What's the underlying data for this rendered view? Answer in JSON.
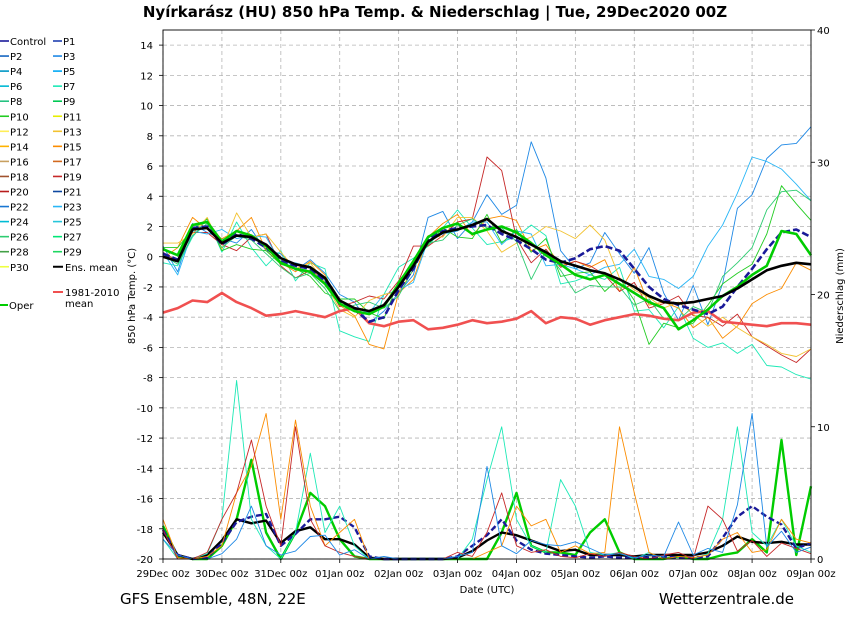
{
  "chart_data": {
    "type": "line",
    "title": "Nyírkarász  (HU)  850 hPa Temp. & Niederschlag | Tue, 29Dec2020 00Z",
    "xlabel": "Date (UTC)",
    "ylabel": "850 hPa Temp. (°C)",
    "ylabel_right": "Niederschlag (mm)",
    "ylim": [
      -20,
      15
    ],
    "ylim_right": [
      0,
      40
    ],
    "yticks": [
      "14",
      "12",
      "10",
      "8",
      "6",
      "4",
      "2",
      "0",
      "-2",
      "-4",
      "-6",
      "-8",
      "-10",
      "-12",
      "-14",
      "-16",
      "-18",
      "-20"
    ],
    "yticks_right": [
      "40",
      "30",
      "20",
      "10",
      "0"
    ],
    "xticks": [
      "29Dec 00z",
      "30Dec 00z",
      "31Dec 00z",
      "01Jan 00z",
      "02Jan 00z",
      "03Jan 00z",
      "04Jan 00z",
      "05Jan 00z",
      "06Jan 00z",
      "07Jan 00z",
      "08Jan 00z",
      "09Jan 00z"
    ],
    "footer_left": "GFS Ensemble, 48N, 22E",
    "footer_right": "Wetterzentrale.de",
    "legend_placement": "left",
    "legend": [
      {
        "label": "Control",
        "color": "#1a1a99"
      },
      {
        "label": "P1",
        "color": "#1f3fb0"
      },
      {
        "label": "P2",
        "color": "#1565c0"
      },
      {
        "label": "P3",
        "color": "#1e88e5"
      },
      {
        "label": "P4",
        "color": "#0097c4"
      },
      {
        "label": "P5",
        "color": "#03a9f4"
      },
      {
        "label": "P6",
        "color": "#00b8d4"
      },
      {
        "label": "P7",
        "color": "#1de9b6"
      },
      {
        "label": "P8",
        "color": "#26c281"
      },
      {
        "label": "P9",
        "color": "#00c853"
      },
      {
        "label": "P10",
        "color": "#22cc22"
      },
      {
        "label": "P11",
        "color": "#e6ee00"
      },
      {
        "label": "P12",
        "color": "#ffee58"
      },
      {
        "label": "P13",
        "color": "#f2c230"
      },
      {
        "label": "P14",
        "color": "#ffb300"
      },
      {
        "label": "P15",
        "color": "#fb8c00"
      },
      {
        "label": "P16",
        "color": "#c8a060"
      },
      {
        "label": "P17",
        "color": "#d2691e"
      },
      {
        "label": "P18",
        "color": "#a0522d"
      },
      {
        "label": "P19",
        "color": "#c62828"
      },
      {
        "label": "P20",
        "color": "#b71c1c"
      },
      {
        "label": "P21",
        "color": "#0d47a1"
      },
      {
        "label": "P22",
        "color": "#1976d2"
      },
      {
        "label": "P23",
        "color": "#29b6f6"
      },
      {
        "label": "P24",
        "color": "#00bcd4"
      },
      {
        "label": "P25",
        "color": "#26c6da"
      },
      {
        "label": "P26",
        "color": "#2ecc71"
      },
      {
        "label": "P27",
        "color": "#00e676"
      },
      {
        "label": "P28",
        "color": "#43a047"
      },
      {
        "label": "P29",
        "color": "#1ed760"
      },
      {
        "label": "P30",
        "color": "#eeff41"
      },
      {
        "label": "Ens. mean",
        "color": "#000000"
      },
      {
        "label": "1981-2010 mean",
        "color": "#f05050"
      },
      {
        "label": "Oper",
        "color": "#00cc00"
      }
    ],
    "x": [
      0,
      6,
      12,
      18,
      24,
      30,
      36,
      42,
      48,
      54,
      60,
      66,
      72,
      78,
      84,
      90,
      96,
      102,
      108,
      114,
      120,
      126,
      132,
      138,
      144,
      150,
      156,
      162,
      168,
      174,
      180,
      186,
      192,
      198,
      204,
      210,
      216,
      222,
      228,
      234,
      240,
      246,
      252,
      258,
      264
    ],
    "series": [
      {
        "name": "Ens. mean",
        "kind": "temp",
        "values": [
          0,
          -0.3,
          1.8,
          1.9,
          0.9,
          1.4,
          1.3,
          0.8,
          -0.1,
          -0.5,
          -0.7,
          -1.4,
          -2.9,
          -3.4,
          -3.6,
          -3.2,
          -2,
          -0.6,
          1,
          1.6,
          1.8,
          2.1,
          2.5,
          1.7,
          1.3,
          0.8,
          0.3,
          -0.3,
          -0.6,
          -0.9,
          -1.1,
          -1.5,
          -2,
          -2.6,
          -3,
          -3.1,
          -3,
          -2.8,
          -2.6,
          -2.1,
          -1.5,
          -0.9,
          -0.6,
          -0.4,
          -0.5
        ]
      },
      {
        "name": "Control",
        "kind": "temp",
        "values": [
          0.2,
          -0.2,
          1.9,
          2,
          0.8,
          1.5,
          1.2,
          0.6,
          -0.3,
          -0.6,
          -0.8,
          -1.6,
          -3,
          -3.5,
          -4.3,
          -4,
          -2.2,
          -0.8,
          1.2,
          1.7,
          1.9,
          2,
          2.1,
          1.5,
          1.1,
          0.5,
          -0.2,
          -0.4,
          -0.1,
          0.5,
          0.7,
          0.4,
          -0.8,
          -2,
          -2.8,
          -3.2,
          -3.5,
          -3.8,
          -3.3,
          -2,
          -0.8,
          0.5,
          1.6,
          1.8,
          1.3
        ]
      },
      {
        "name": "Oper",
        "kind": "temp",
        "values": [
          0.5,
          0.1,
          2.1,
          2.3,
          1,
          1.7,
          1.4,
          0.7,
          -0.4,
          -0.8,
          -1,
          -1.8,
          -3.1,
          -3.6,
          -3.8,
          -3.3,
          -1.8,
          -0.3,
          1.3,
          1.9,
          2.2,
          1.5,
          1.8,
          2,
          1.6,
          0.9,
          0.1,
          -0.5,
          -1.2,
          -1.5,
          -1.2,
          -1.8,
          -2.4,
          -3,
          -3.4,
          -4.8,
          -4.2,
          -3.5,
          -2.6,
          -2,
          -1.2,
          -0.6,
          1.7,
          1.5,
          0.1
        ]
      },
      {
        "name": "1981-2010 mean",
        "kind": "temp",
        "values": [
          -3.7,
          -3.4,
          -2.9,
          -3,
          -2.4,
          -3,
          -3.4,
          -3.9,
          -3.8,
          -3.6,
          -3.8,
          -4,
          -3.6,
          -3.4,
          -4.4,
          -4.6,
          -4.3,
          -4.2,
          -4.8,
          -4.7,
          -4.5,
          -4.2,
          -4.4,
          -4.3,
          -4.1,
          -3.6,
          -4.4,
          -4,
          -4.1,
          -4.5,
          -4.2,
          -4,
          -3.8,
          -3.9,
          -4.1,
          -4.2,
          -3.7,
          -3.6,
          -4.3,
          -4.4,
          -4.5,
          -4.6,
          -4.4,
          -4.4,
          -4.5
        ]
      },
      {
        "name": "P3",
        "kind": "temp",
        "values": [
          0.7,
          -1,
          2.2,
          1.6,
          1.2,
          0.9,
          1.8,
          0.4,
          0.2,
          -0.9,
          -0.2,
          -1.1,
          -2.5,
          -3,
          -4.4,
          -3.6,
          -2.4,
          -1.2,
          2.6,
          3,
          1.2,
          2.3,
          4.1,
          2.8,
          3.4,
          7.6,
          5.2,
          0.4,
          -0.8,
          -0.4,
          1.6,
          0.2,
          -1.1,
          0.6,
          -2.4,
          -4.2,
          -1.9,
          -4.5,
          -1.8,
          3.2,
          4.1,
          6.5,
          7.4,
          7.5,
          8.6
        ]
      },
      {
        "name": "P7",
        "kind": "temp",
        "values": [
          -0.4,
          -0.6,
          1.3,
          2.5,
          0.3,
          2.3,
          0.6,
          -0.6,
          0.4,
          -1.6,
          -0.4,
          -0.8,
          -4.9,
          -5.3,
          -5.6,
          -2.5,
          -0.7,
          -0.1,
          0.7,
          1.9,
          3.1,
          1.9,
          0.8,
          1,
          1.3,
          2.1,
          1.4,
          -1.8,
          -1.6,
          -1.2,
          -1.5,
          -0.7,
          -3.6,
          -3.5,
          -4.7,
          -3.3,
          -5.4,
          -6,
          -5.7,
          -6.4,
          -5.8,
          -7.2,
          -7.3,
          -7.8,
          -8.1
        ]
      },
      {
        "name": "P15",
        "kind": "temp",
        "values": [
          -0.1,
          0.6,
          2.6,
          1.8,
          1.2,
          1.7,
          2.6,
          0.4,
          -0.4,
          -1,
          -0.3,
          -1.2,
          -3.2,
          -3.9,
          -5.8,
          -6.1,
          -2.4,
          -1.5,
          1.3,
          2.2,
          2.8,
          1.4,
          2.5,
          2.7,
          2.4,
          0.4,
          0.8,
          -0.6,
          -0.3,
          -0.7,
          -0.2,
          -2.3,
          -0.7,
          -3.2,
          -3,
          -3.4,
          -4.7,
          -4,
          -5.4,
          -4.6,
          -3.1,
          -2.5,
          -2.1,
          -0.4,
          -0.9
        ]
      },
      {
        "name": "P19",
        "kind": "temp",
        "values": [
          0.3,
          -0.3,
          1.6,
          1.6,
          0.8,
          0.4,
          1.3,
          1.5,
          -0.6,
          -1.4,
          -0.9,
          -1.5,
          -3.3,
          -3,
          -2.6,
          -2.8,
          -1.6,
          0.7,
          0.7,
          1.4,
          2.3,
          2.5,
          6.6,
          5.7,
          1.2,
          -0.4,
          0.5,
          -0.7,
          -0.3,
          -0.6,
          -1.2,
          -2.3,
          -1.7,
          -3.4,
          -3.1,
          -2.6,
          -3.9,
          -4,
          -4.6,
          -3.8,
          -5.3,
          -5.9,
          -6.5,
          -7,
          -6.1
        ]
      },
      {
        "name": "P23",
        "kind": "temp",
        "values": [
          0.3,
          -1.2,
          1.7,
          1.5,
          1.8,
          1.2,
          1.4,
          1.3,
          -0.4,
          -0.4,
          -0.7,
          -1.6,
          -2.9,
          -3.6,
          -3.7,
          -2.5,
          -2.2,
          -1.7,
          1.1,
          1.5,
          1.7,
          2.3,
          2.3,
          0.8,
          1.7,
          1.5,
          -0.6,
          -0.5,
          -0.8,
          -1.2,
          -0.7,
          -0.5,
          0.5,
          -1.3,
          -1.5,
          -2.1,
          -1.3,
          0.7,
          2.1,
          4.2,
          6.6,
          6.3,
          5.8,
          4.8,
          3.7
        ]
      },
      {
        "name": "P10",
        "kind": "temp",
        "values": [
          0.6,
          0.6,
          1.8,
          2.5,
          0.4,
          0.8,
          0.5,
          0.4,
          -0.5,
          -0.8,
          -1.3,
          -2.4,
          -2.8,
          -2.8,
          -3.7,
          -4.1,
          -1.6,
          -0.4,
          0.8,
          1.9,
          1.3,
          1.2,
          2.8,
          0.9,
          1.8,
          0.3,
          1.2,
          -1.3,
          -1.1,
          -1,
          -2.3,
          -1.4,
          -2.9,
          -5.8,
          -4.4,
          -4.7,
          -4.4,
          -3.2,
          -1.8,
          -1.1,
          -0.5,
          1.5,
          4.7,
          3.5,
          2.4
        ]
      },
      {
        "name": "P13",
        "kind": "temp",
        "values": [
          0.9,
          0.9,
          1.5,
          2.6,
          0.5,
          2.9,
          1.3,
          1.5,
          0.3,
          -0.8,
          -0.4,
          -1.7,
          -3.5,
          -4,
          -2.9,
          -2.5,
          -2.3,
          -0.9,
          1.4,
          1.3,
          2.6,
          2.6,
          1.7,
          0.3,
          0.9,
          1.3,
          2,
          1.7,
          1.2,
          2.1,
          1.1,
          -1.4,
          -2.2,
          -2.7,
          -3.4,
          -3,
          -3.8,
          -4.6,
          -4,
          -4.7,
          -5.3,
          -5.8,
          -6.4,
          -6.6,
          -6.1
        ]
      },
      {
        "name": "P26",
        "kind": "temp",
        "values": [
          0.1,
          -0.5,
          1.4,
          2.2,
          0.6,
          1.4,
          1.1,
          0.2,
          -0.7,
          -1.4,
          -1.1,
          -2.1,
          -3.6,
          -3.2,
          -3,
          -3.4,
          -2.6,
          -0.8,
          0.9,
          1.1,
          2.1,
          2.5,
          1.9,
          1.9,
          1,
          -1.5,
          0.4,
          -0.9,
          -2.4,
          -1.9,
          -2,
          -2,
          -3.2,
          -2.8,
          -4.1,
          -4.2,
          -3.3,
          -3.7,
          -1.3,
          -0.4,
          0.6,
          3.1,
          4.3,
          4.4,
          3.7
        ]
      }
    ],
    "precip_series": [
      {
        "name": "Oper",
        "values": [
          2.5,
          0.2,
          0,
          0,
          1,
          3,
          7.5,
          2,
          0,
          2,
          5,
          4,
          1.5,
          0.2,
          0,
          0,
          0,
          0,
          0,
          0,
          0,
          0,
          0,
          2,
          5,
          1,
          0.5,
          0.5,
          0.3,
          2,
          3,
          0.5,
          0,
          0,
          0,
          0.2,
          0,
          0,
          0.3,
          0.5,
          1.5,
          0.5,
          9,
          0.3,
          5.5
        ]
      },
      {
        "name": "Ens. mean",
        "values": [
          2,
          0.3,
          0,
          0.3,
          1.4,
          3,
          2.7,
          2.9,
          1.2,
          2.1,
          2.4,
          1.5,
          1.5,
          1.1,
          0.1,
          0,
          0,
          0,
          0,
          0,
          0.1,
          0.6,
          1.4,
          2,
          1.8,
          1.4,
          1,
          0.6,
          0.7,
          0.3,
          0.3,
          0.3,
          0.2,
          0.3,
          0.3,
          0.3,
          0.3,
          0.5,
          1,
          1.7,
          1.3,
          1.2,
          1.3,
          1.1,
          1.1
        ]
      },
      {
        "name": "Control",
        "values": [
          2.2,
          0.3,
          0,
          0.1,
          1.2,
          2.8,
          3.2,
          3.4,
          1,
          1.9,
          3,
          3,
          3.2,
          2.4,
          0.2,
          0,
          0,
          0,
          0,
          0,
          0.2,
          1,
          1.8,
          3,
          1.4,
          0.7,
          0.4,
          0.3,
          0.2,
          0.1,
          0.2,
          0.1,
          0.1,
          0.1,
          0.2,
          0.1,
          0.1,
          0.2,
          1.6,
          3.2,
          4,
          3.2,
          2.6,
          0.8,
          1.2
        ]
      },
      {
        "name": "P7",
        "values": [
          1.5,
          0,
          0,
          0.4,
          3,
          13.5,
          3,
          1,
          0,
          2,
          8,
          2,
          4,
          1,
          0,
          0,
          0,
          0,
          0,
          0,
          0,
          1.5,
          6,
          10,
          3,
          1,
          0.5,
          6,
          4,
          0.5,
          0.3,
          0.5,
          0,
          0.5,
          0,
          0,
          0,
          0.4,
          3,
          10,
          2,
          1,
          3,
          1,
          0.5
        ]
      },
      {
        "name": "P15",
        "values": [
          3,
          0.1,
          0,
          0.2,
          1,
          5,
          7,
          11,
          3,
          10.5,
          4,
          1,
          2,
          3,
          0,
          0,
          0,
          0,
          0,
          0,
          0,
          0,
          0.5,
          1,
          4,
          2.5,
          3,
          0.5,
          1,
          0.4,
          0.5,
          10,
          5,
          0.5,
          0,
          0.2,
          0.1,
          0.3,
          1.5,
          2,
          0.5,
          0.7,
          3,
          1.5,
          1.2
        ]
      },
      {
        "name": "P19",
        "values": [
          2.2,
          0,
          0,
          0.5,
          3,
          5,
          9,
          4,
          1,
          10,
          3,
          1,
          0.5,
          0.2,
          0,
          0,
          0,
          0,
          0,
          0,
          0.5,
          0.2,
          2,
          5,
          1,
          0.5,
          0.7,
          0.2,
          0.1,
          0.4,
          0.2,
          0.5,
          0.2,
          0,
          0.3,
          0.5,
          0,
          4,
          3,
          0.6,
          1.4,
          0.2,
          1.2,
          0.8,
          0.4
        ]
      },
      {
        "name": "P3",
        "values": [
          1.5,
          0.3,
          0,
          0,
          0.4,
          1.5,
          4,
          1,
          0.3,
          0.6,
          1.7,
          1.8,
          0.3,
          0.7,
          0,
          0.2,
          0,
          0,
          0,
          0,
          0.2,
          0.5,
          7,
          1,
          0.4,
          1.4,
          1.1,
          1,
          1.3,
          0.8,
          0.3,
          0.4,
          0.1,
          0.3,
          0.2,
          2.8,
          0.3,
          0.8,
          0.5,
          4.1,
          11,
          0.9,
          2.1,
          0.5,
          0.9
        ]
      }
    ]
  }
}
